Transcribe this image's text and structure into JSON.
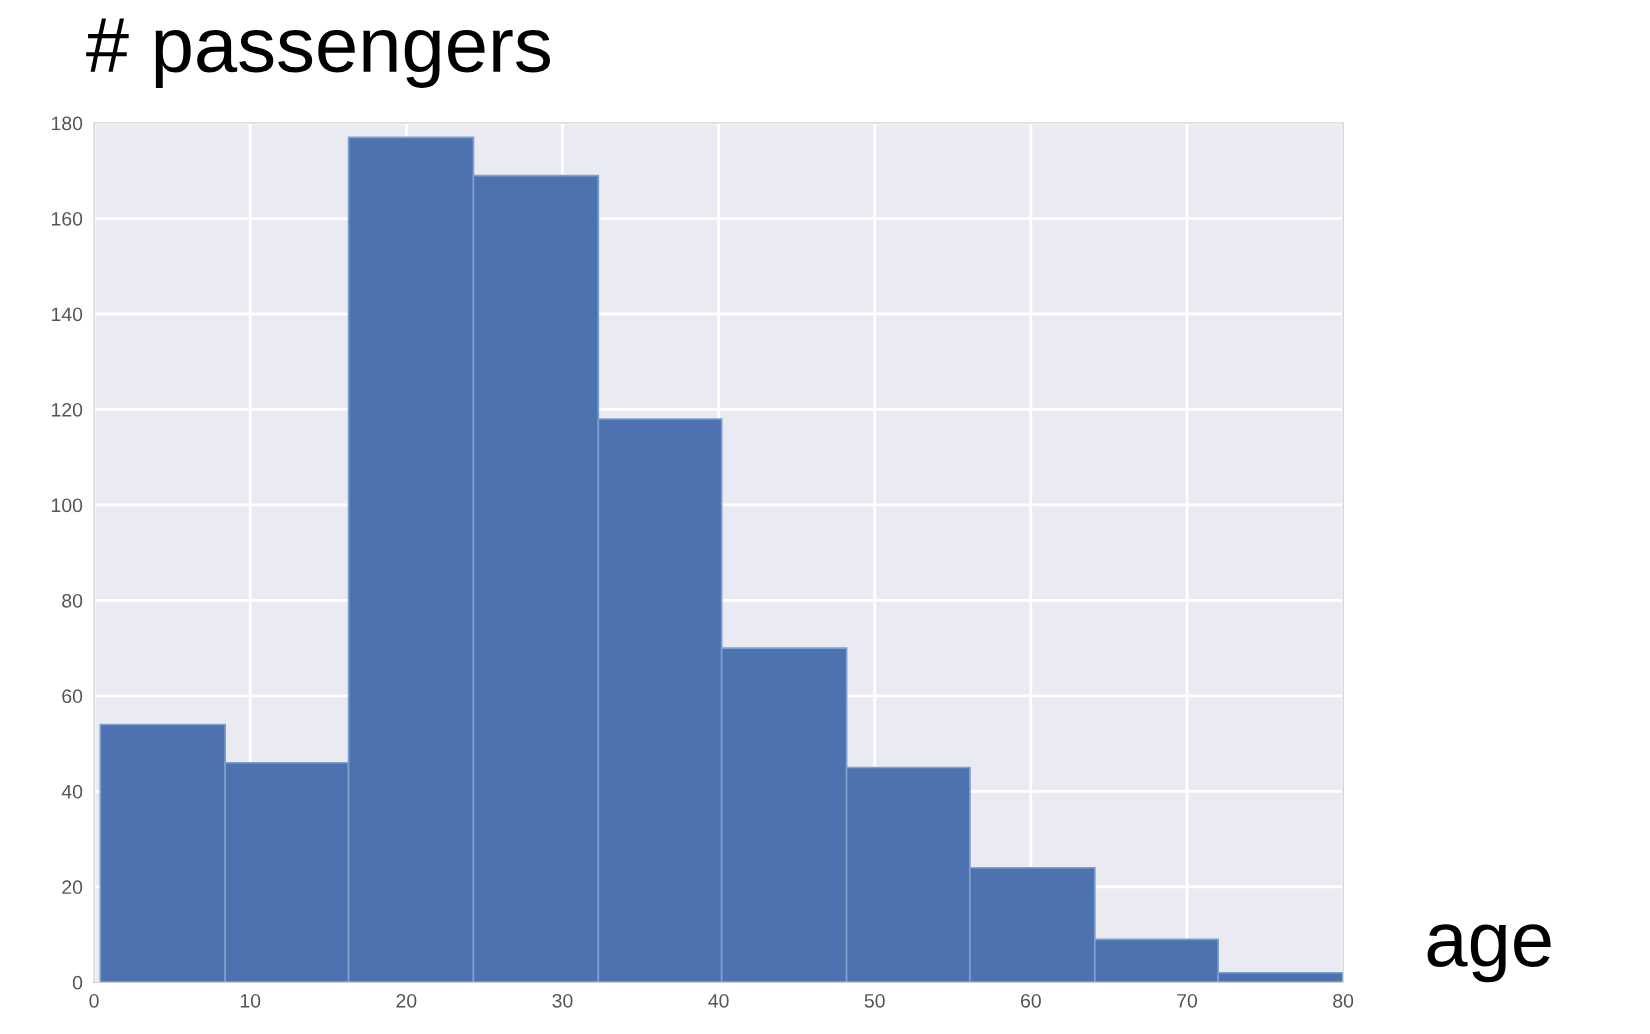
{
  "chart_data": {
    "type": "histogram",
    "title": "# passengers",
    "xlabel": "age",
    "bins": [
      0.4,
      8.4,
      16.3,
      24.3,
      32.3,
      40.2,
      48.2,
      56.1,
      64.1,
      72.0,
      80
    ],
    "values": [
      54,
      46,
      177,
      169,
      118,
      70,
      45,
      24,
      9,
      2
    ],
    "color": "#4c72b0",
    "xlim": [
      0,
      80
    ],
    "xticks": [
      0,
      10,
      20,
      30,
      40,
      50,
      60,
      70,
      80
    ],
    "ylim": [
      0,
      180
    ],
    "yticks": [
      0,
      20,
      40,
      60,
      80,
      100,
      120,
      140,
      160,
      180
    ],
    "grid": true
  }
}
